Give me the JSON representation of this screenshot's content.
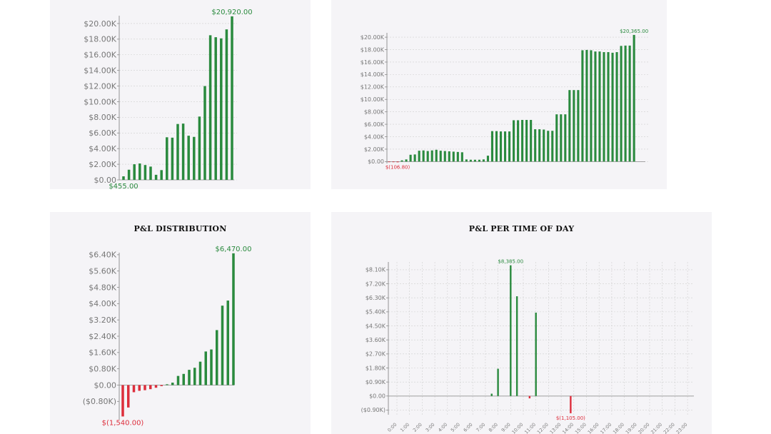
{
  "colors": {
    "positive": "#2a8a3e",
    "negative": "#dd2e3c",
    "axis": "#888888",
    "grid": "#cfcfcf",
    "tick_text": "#777777",
    "panel_bg": "#f5f4f7"
  },
  "chart_data": [
    {
      "id": "cumulative-pnl-daily",
      "type": "bar",
      "title": "",
      "ylim": [
        0,
        21000
      ],
      "yticks": [
        0,
        2000,
        4000,
        6000,
        8000,
        10000,
        12000,
        14000,
        16000,
        18000,
        20000
      ],
      "ytick_labels": [
        "$0.00",
        "$2.00K",
        "$4.00K",
        "$6.00K",
        "$8.00K",
        "$10.00K",
        "$12.00K",
        "$14.00K",
        "$16.00K",
        "$18.00K",
        "$20.00K"
      ],
      "values": [
        455,
        1300,
        2000,
        2100,
        1900,
        1700,
        650,
        1250,
        5450,
        5400,
        7150,
        7200,
        5650,
        5500,
        8100,
        12000,
        18500,
        18250,
        18100,
        19250,
        20920
      ],
      "annotations": [
        {
          "label": "$20,920.00",
          "index": 20,
          "kind": "max"
        },
        {
          "label": "$455.00",
          "index": 0,
          "kind": "min"
        }
      ]
    },
    {
      "id": "cumulative-pnl-trades",
      "type": "bar",
      "title": "",
      "ylim": [
        -300,
        20700
      ],
      "yticks": [
        0,
        2000,
        4000,
        6000,
        8000,
        10000,
        12000,
        14000,
        16000,
        18000,
        20000
      ],
      "ytick_labels": [
        "$0.00",
        "$2.00K",
        "$4.00K",
        "$6.00K",
        "$8.00K",
        "$10.00K",
        "$12.00K",
        "$14.00K",
        "$16.00K",
        "$18.00K",
        "$20.00K"
      ],
      "values": [
        -40,
        -60,
        -106.8,
        200,
        350,
        1100,
        1150,
        1750,
        1800,
        1700,
        1800,
        1900,
        1750,
        1700,
        1650,
        1600,
        1550,
        1500,
        350,
        300,
        300,
        300,
        350,
        950,
        4900,
        4900,
        4850,
        4850,
        4850,
        6650,
        6650,
        6700,
        6700,
        6700,
        5200,
        5200,
        5150,
        4950,
        4950,
        7600,
        7600,
        7600,
        11500,
        11500,
        11500,
        17900,
        17950,
        17900,
        17700,
        17700,
        17600,
        17600,
        17500,
        17600,
        18600,
        18650,
        18650,
        20365
      ],
      "annotations": [
        {
          "label": "$20,365.00",
          "index": 57,
          "kind": "max"
        },
        {
          "label": "$(106.80)",
          "index": 2,
          "kind": "min"
        }
      ]
    },
    {
      "id": "pnl-distribution",
      "type": "bar",
      "title": "P&L DISTRIBUTION",
      "ylim": [
        -1700,
        6500
      ],
      "yticks": [
        -800,
        0,
        800,
        1600,
        2400,
        3200,
        4000,
        4800,
        5600,
        6400
      ],
      "ytick_labels": [
        "($0.80K)",
        "$0.00",
        "$0.80K",
        "$1.60K",
        "$2.40K",
        "$3.20K",
        "$4.00K",
        "$4.80K",
        "$5.60K",
        "$6.40K"
      ],
      "values": [
        -1540,
        -1100,
        -350,
        -280,
        -250,
        -200,
        -130,
        -50,
        40,
        120,
        450,
        550,
        750,
        850,
        1150,
        1650,
        1750,
        2700,
        3900,
        4150,
        6470
      ],
      "annotations": [
        {
          "label": "$6,470.00",
          "index": 20,
          "kind": "max"
        },
        {
          "label": "$(1,540.00)",
          "index": 0,
          "kind": "min"
        }
      ]
    },
    {
      "id": "pnl-per-time-of-day",
      "type": "bar",
      "title": "P&L PER TIME OF DAY",
      "ylim": [
        -1200,
        8600
      ],
      "yticks": [
        -900,
        0,
        900,
        1800,
        2700,
        3600,
        4500,
        5400,
        6300,
        7200,
        8100
      ],
      "ytick_labels": [
        "($0.90K)",
        "$0.00",
        "$0.90K",
        "$1.80K",
        "$2.70K",
        "$3.60K",
        "$4.50K",
        "$5.40K",
        "$6.30K",
        "$7.20K",
        "$8.10K"
      ],
      "categories": [
        "0:00",
        "1:00",
        "2:00",
        "3:00",
        "4:00",
        "5:00",
        "6:00",
        "7:00",
        "8:00",
        "9:00",
        "10:00",
        "11:00",
        "12:00",
        "13:00",
        "14:00",
        "15:00",
        "16:00",
        "17:00",
        "18:00",
        "19:00",
        "20:00",
        "21:00",
        "22:00",
        "23:00"
      ],
      "bars": [
        {
          "x": 7.5,
          "value": 150
        },
        {
          "x": 8.0,
          "value": 1750
        },
        {
          "x": 9.0,
          "value": 8385
        },
        {
          "x": 9.5,
          "value": 6400
        },
        {
          "x": 10.5,
          "value": -150
        },
        {
          "x": 11.0,
          "value": 5350
        },
        {
          "x": 13.75,
          "value": -1105
        }
      ],
      "annotations": [
        {
          "label": "$8,385.00",
          "index": 2,
          "kind": "max"
        },
        {
          "label": "$(1,105.00)",
          "index": 6,
          "kind": "min"
        }
      ]
    }
  ]
}
